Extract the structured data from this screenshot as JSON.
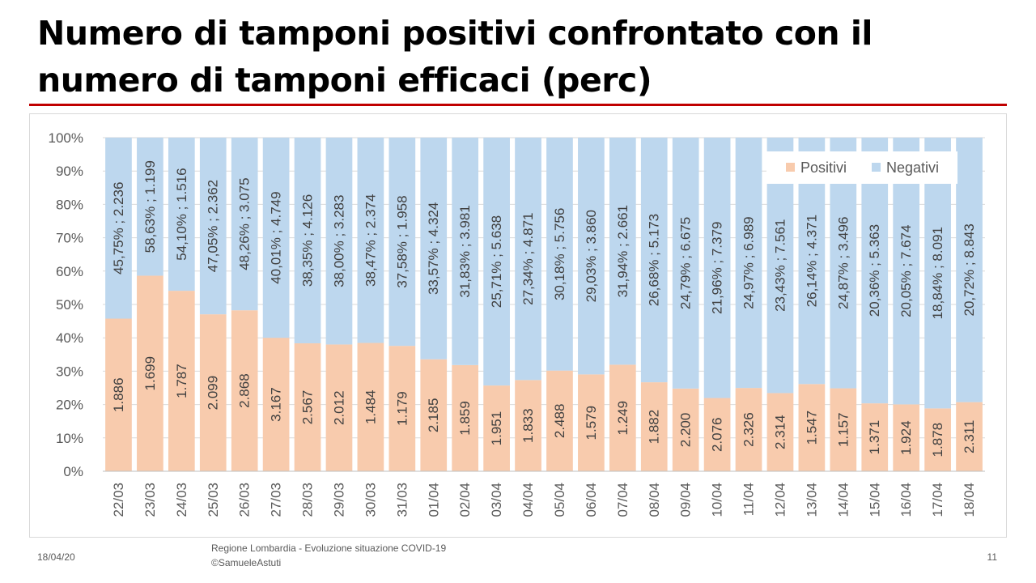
{
  "slide": {
    "title": "Numero di tamponi positivi confrontato con il numero di tamponi efficaci (perc)",
    "footer_date": "18/04/20",
    "footer_source_line1": "Regione Lombardia - Evoluzione situazione COVID-19",
    "footer_source_line2": "©SamueleAstuti",
    "page_number": "11"
  },
  "chart_data": {
    "type": "bar",
    "stacked": "percent",
    "title": "",
    "xlabel": "",
    "ylabel": "",
    "ylim": [
      0,
      100
    ],
    "y_ticks": [
      "0%",
      "10%",
      "20%",
      "30%",
      "40%",
      "50%",
      "60%",
      "70%",
      "80%",
      "90%",
      "100%"
    ],
    "grid": true,
    "legend_position": "top-right",
    "categories": [
      "22/03",
      "23/03",
      "24/03",
      "25/03",
      "26/03",
      "27/03",
      "28/03",
      "29/03",
      "30/03",
      "31/03",
      "01/04",
      "02/04",
      "03/04",
      "04/04",
      "05/04",
      "06/04",
      "07/04",
      "08/04",
      "09/04",
      "10/04",
      "11/04",
      "12/04",
      "13/04",
      "14/04",
      "15/04",
      "16/04",
      "17/04",
      "18/04"
    ],
    "series": [
      {
        "name": "Positivi",
        "color": "#f8cbad",
        "values": [
          1886,
          1699,
          1787,
          2099,
          2868,
          3167,
          2567,
          2012,
          1484,
          1179,
          2185,
          1859,
          1951,
          1833,
          2488,
          1579,
          1249,
          1882,
          2200,
          2076,
          2326,
          2314,
          1547,
          1157,
          1371,
          1924,
          1878,
          2311
        ],
        "labels": [
          "1.886",
          "1.699",
          "1.787",
          "2.099",
          "2.868",
          "3.167",
          "2.567",
          "2.012",
          "1.484",
          "1.179",
          "2.185",
          "1.859",
          "1.951",
          "1.833",
          "2.488",
          "1.579",
          "1.249",
          "1.882",
          "2.200",
          "2.076",
          "2.326",
          "2.314",
          "1.547",
          "1.157",
          "1.371",
          "1.924",
          "1.878",
          "2.311"
        ]
      },
      {
        "name": "Negativi",
        "color": "#bdd7ee",
        "values": [
          2236,
          1199,
          1516,
          2362,
          3075,
          4749,
          4126,
          3283,
          2374,
          1958,
          4324,
          3981,
          5638,
          4871,
          5756,
          3860,
          2661,
          5173,
          6675,
          7379,
          6989,
          7561,
          4371,
          3496,
          5363,
          7674,
          8091,
          8843
        ],
        "percent_positive": [
          45.75,
          58.63,
          54.1,
          47.05,
          48.26,
          40.01,
          38.35,
          38.0,
          38.47,
          37.58,
          33.57,
          31.83,
          25.71,
          27.34,
          30.18,
          29.03,
          31.94,
          26.68,
          24.79,
          21.96,
          24.97,
          23.43,
          26.14,
          24.87,
          20.36,
          20.05,
          18.84,
          20.72
        ],
        "labels": [
          "45,75% ; 2.236",
          "58,63% ; 1.199",
          "54,10% ; 1.516",
          "47,05% ; 2.362",
          "48,26% ; 3.075",
          "40,01% ; 4.749",
          "38,35% ; 4.126",
          "38,00% ; 3.283",
          "38,47% ; 2.374",
          "37,58% ; 1.958",
          "33,57% ; 4.324",
          "31,83% ; 3.981",
          "25,71% ; 5.638",
          "27,34% ; 4.871",
          "30,18% ; 5.756",
          "29,03% ; 3.860",
          "31,94% ; 2.661",
          "26,68% ; 5.173",
          "24,79% ; 6.675",
          "21,96% ; 7.379",
          "24,97% ; 6.989",
          "23,43% ; 7.561",
          "26,14% ; 4.371",
          "24,87% ; 3.496",
          "20,36% ; 5.363",
          "20,05% ; 7.674",
          "18,84% ; 8.091",
          "20,72% ; 8.843"
        ]
      }
    ]
  }
}
